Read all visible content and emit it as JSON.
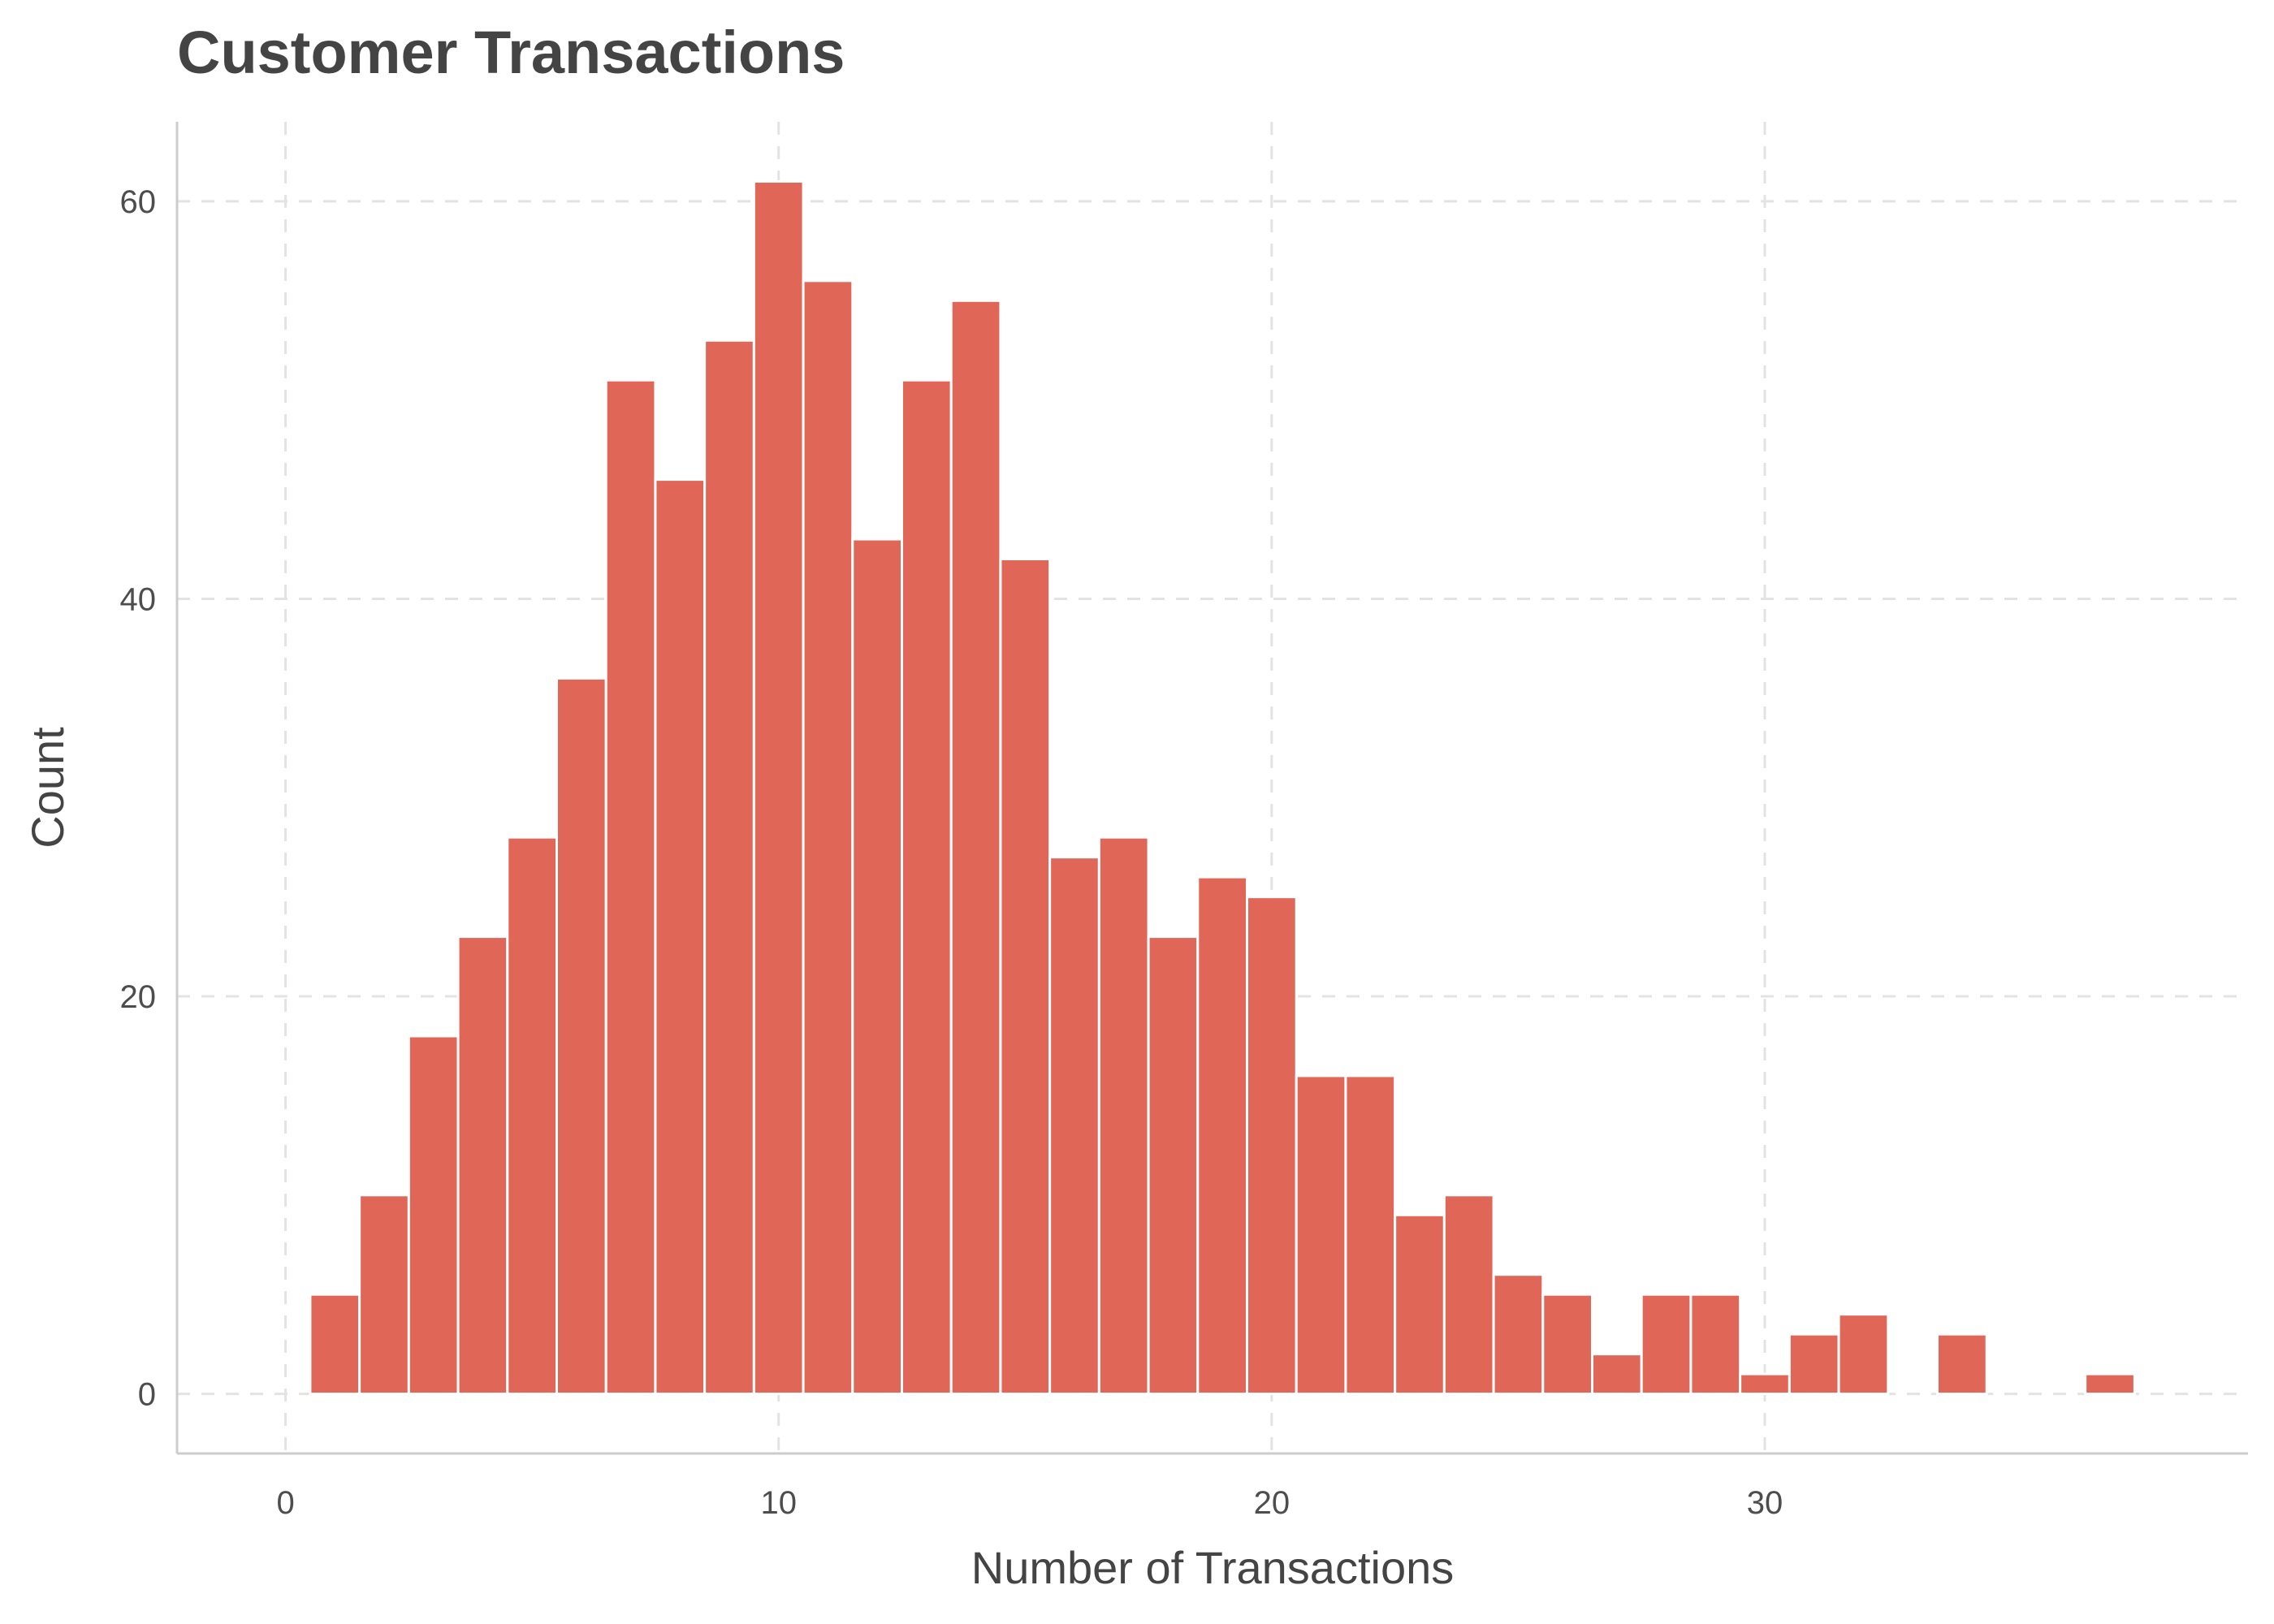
{
  "chart_data": {
    "type": "bar",
    "title": "Customer Transactions",
    "xlabel": "Number of Transactions",
    "ylabel": "Count",
    "xlim": [
      -2.2,
      39.8
    ],
    "ylim": [
      -3,
      64
    ],
    "x_ticks": [
      0,
      10,
      20,
      30
    ],
    "y_ticks": [
      0,
      20,
      40,
      60
    ],
    "bin_width": 1,
    "grid": true,
    "bar_color": "#E06658",
    "bar_outline": "#FFFFFF",
    "bins": [
      {
        "x": 1,
        "count": 5
      },
      {
        "x": 2,
        "count": 10
      },
      {
        "x": 3,
        "count": 18
      },
      {
        "x": 4,
        "count": 23
      },
      {
        "x": 5,
        "count": 28
      },
      {
        "x": 6,
        "count": 36
      },
      {
        "x": 7,
        "count": 51
      },
      {
        "x": 8,
        "count": 46
      },
      {
        "x": 9,
        "count": 53
      },
      {
        "x": 10,
        "count": 61
      },
      {
        "x": 11,
        "count": 56
      },
      {
        "x": 12,
        "count": 43
      },
      {
        "x": 13,
        "count": 51
      },
      {
        "x": 14,
        "count": 55
      },
      {
        "x": 15,
        "count": 42
      },
      {
        "x": 16,
        "count": 27
      },
      {
        "x": 17,
        "count": 28
      },
      {
        "x": 18,
        "count": 23
      },
      {
        "x": 19,
        "count": 26
      },
      {
        "x": 20,
        "count": 25
      },
      {
        "x": 21,
        "count": 16
      },
      {
        "x": 22,
        "count": 16
      },
      {
        "x": 23,
        "count": 9
      },
      {
        "x": 24,
        "count": 10
      },
      {
        "x": 25,
        "count": 6
      },
      {
        "x": 26,
        "count": 5
      },
      {
        "x": 27,
        "count": 2
      },
      {
        "x": 28,
        "count": 5
      },
      {
        "x": 29,
        "count": 5
      },
      {
        "x": 30,
        "count": 1
      },
      {
        "x": 31,
        "count": 3
      },
      {
        "x": 32,
        "count": 4
      },
      {
        "x": 34,
        "count": 3
      },
      {
        "x": 37,
        "count": 1
      }
    ]
  }
}
